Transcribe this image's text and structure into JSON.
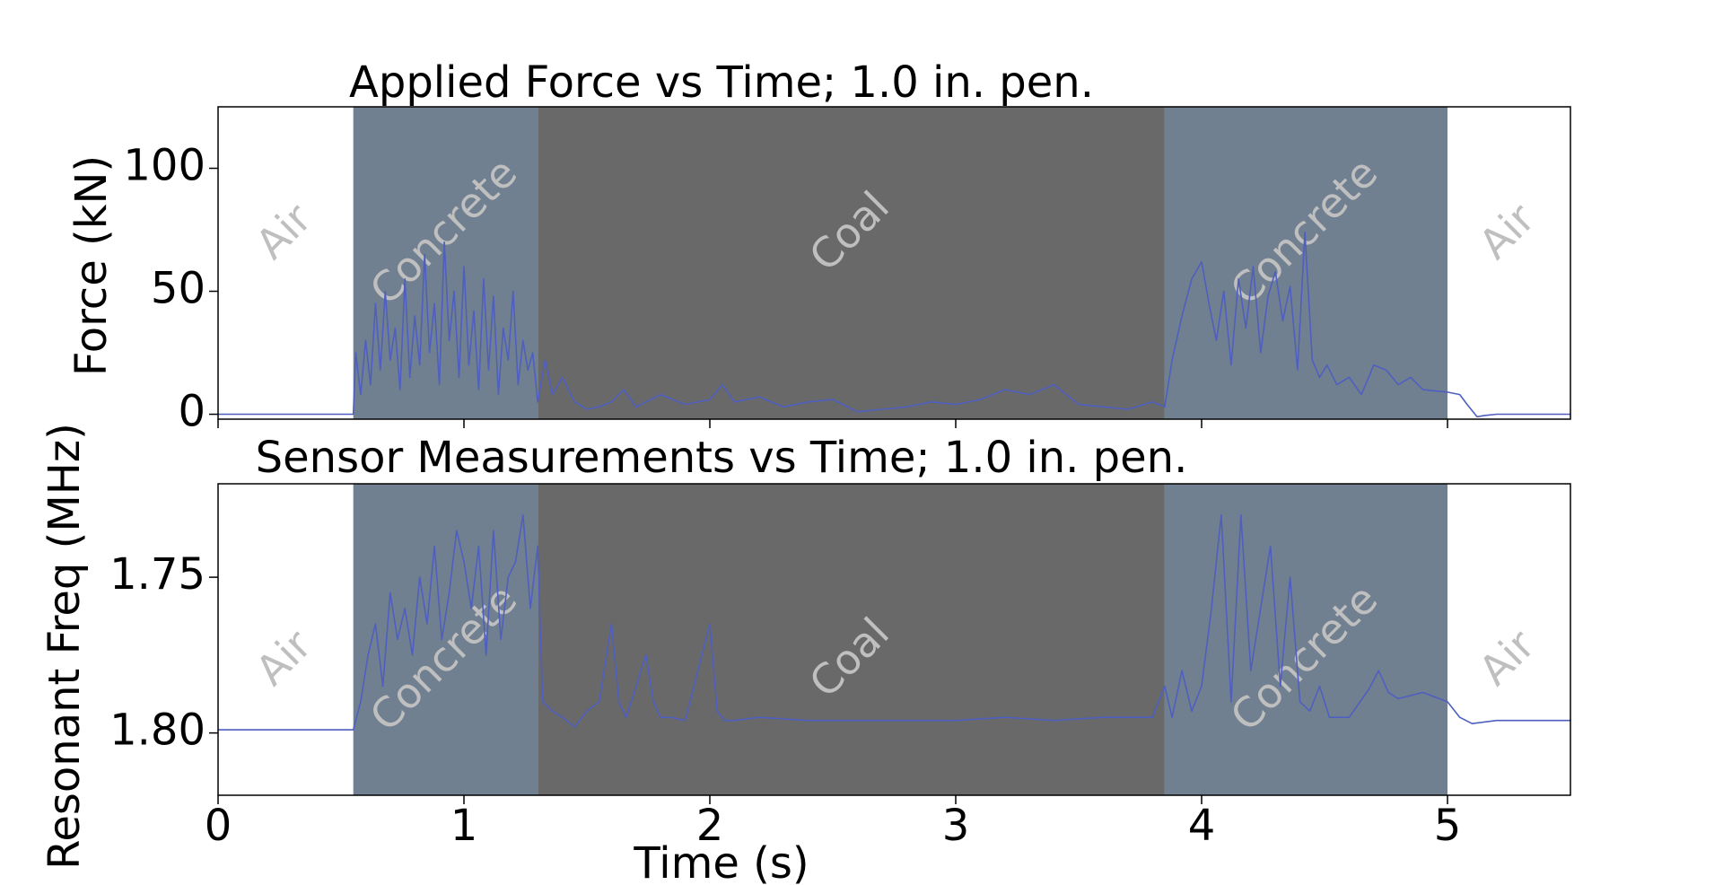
{
  "chart_data": [
    {
      "type": "line",
      "title": "Applied Force vs Time; 1.0 in. pen.",
      "xlabel": "",
      "ylabel": "Force (kN)",
      "xlim": [
        0,
        5.5
      ],
      "ylim": [
        -2,
        125
      ],
      "yticks": [
        0,
        50,
        100
      ],
      "xticks": [
        0,
        1,
        2,
        3,
        4,
        5
      ],
      "show_xtick_labels": false,
      "line_color": "#4f5fbf",
      "regions": [
        {
          "label": "Air",
          "x0": 0.0,
          "x1": 0.55,
          "color": "#ffffff"
        },
        {
          "label": "Concrete",
          "x0": 0.55,
          "x1": 1.3,
          "color": "#708090"
        },
        {
          "label": "Coal",
          "x0": 1.3,
          "x1": 3.85,
          "color": "#696969"
        },
        {
          "label": "Concrete",
          "x0": 3.85,
          "x1": 5.0,
          "color": "#708090"
        },
        {
          "label": "Air",
          "x0": 5.0,
          "x1": 5.5,
          "color": "#ffffff"
        }
      ],
      "series": [
        {
          "x": [
            0,
            0.55,
            0.56,
            0.58,
            0.6,
            0.62,
            0.64,
            0.66,
            0.68,
            0.7,
            0.72,
            0.74,
            0.76,
            0.78,
            0.8,
            0.82,
            0.84,
            0.86,
            0.88,
            0.9,
            0.92,
            0.94,
            0.96,
            0.98,
            1.0,
            1.02,
            1.04,
            1.06,
            1.08,
            1.1,
            1.12,
            1.14,
            1.16,
            1.18,
            1.2,
            1.22,
            1.24,
            1.26,
            1.28,
            1.3,
            1.33,
            1.36,
            1.4,
            1.45,
            1.5,
            1.55,
            1.6,
            1.65,
            1.7,
            1.8,
            1.9,
            2.0,
            2.05,
            2.1,
            2.2,
            2.3,
            2.4,
            2.5,
            2.6,
            2.7,
            2.8,
            2.9,
            3.0,
            3.1,
            3.2,
            3.3,
            3.4,
            3.5,
            3.6,
            3.7,
            3.8,
            3.85,
            3.88,
            3.92,
            3.96,
            4.0,
            4.03,
            4.06,
            4.09,
            4.12,
            4.15,
            4.18,
            4.21,
            4.24,
            4.27,
            4.3,
            4.33,
            4.36,
            4.39,
            4.42,
            4.45,
            4.48,
            4.51,
            4.55,
            4.6,
            4.65,
            4.7,
            4.75,
            4.8,
            4.85,
            4.9,
            5.0,
            5.05,
            5.08,
            5.12,
            5.15,
            5.2,
            5.3,
            5.5
          ],
          "y": [
            0,
            0,
            25,
            8,
            30,
            12,
            45,
            18,
            50,
            22,
            35,
            10,
            55,
            15,
            40,
            20,
            65,
            25,
            45,
            12,
            70,
            30,
            50,
            15,
            60,
            20,
            42,
            10,
            55,
            18,
            48,
            8,
            35,
            22,
            50,
            12,
            30,
            18,
            25,
            5,
            22,
            8,
            15,
            5,
            2,
            3,
            5,
            10,
            3,
            8,
            4,
            6,
            12,
            5,
            7,
            3,
            5,
            6,
            1,
            2,
            3,
            5,
            4,
            6,
            10,
            8,
            12,
            4,
            3,
            2,
            5,
            3,
            22,
            40,
            55,
            62,
            45,
            30,
            50,
            20,
            55,
            35,
            60,
            25,
            48,
            58,
            38,
            52,
            18,
            74,
            22,
            15,
            20,
            12,
            15,
            8,
            20,
            18,
            12,
            15,
            10,
            9,
            8,
            4,
            -1,
            -0.5,
            0,
            0,
            0
          ]
        }
      ]
    },
    {
      "type": "line",
      "title": "Sensor Measurements vs Time; 1.0 in. pen.",
      "xlabel": "Time (s)",
      "ylabel": "Resonant Freq (MHz)",
      "xlim": [
        0,
        5.5
      ],
      "ylim": [
        1.82,
        1.72
      ],
      "yticks": [
        1.75,
        1.8
      ],
      "xticks": [
        0,
        1,
        2,
        3,
        4,
        5
      ],
      "y_inverted": true,
      "line_color": "#4f5fbf",
      "regions": [
        {
          "label": "Air",
          "x0": 0.0,
          "x1": 0.55,
          "color": "#ffffff"
        },
        {
          "label": "Concrete",
          "x0": 0.55,
          "x1": 1.3,
          "color": "#708090"
        },
        {
          "label": "Coal",
          "x0": 1.3,
          "x1": 3.85,
          "color": "#696969"
        },
        {
          "label": "Concrete",
          "x0": 3.85,
          "x1": 5.0,
          "color": "#708090"
        },
        {
          "label": "Air",
          "x0": 5.0,
          "x1": 5.5,
          "color": "#ffffff"
        }
      ],
      "series": [
        {
          "x": [
            0,
            0.55,
            0.58,
            0.61,
            0.64,
            0.67,
            0.7,
            0.73,
            0.76,
            0.79,
            0.82,
            0.85,
            0.88,
            0.91,
            0.94,
            0.97,
            1.0,
            1.03,
            1.06,
            1.09,
            1.12,
            1.15,
            1.18,
            1.21,
            1.24,
            1.27,
            1.3,
            1.32,
            1.36,
            1.4,
            1.45,
            1.5,
            1.55,
            1.6,
            1.63,
            1.66,
            1.7,
            1.74,
            1.77,
            1.8,
            1.84,
            1.9,
            2.0,
            2.03,
            2.06,
            2.1,
            2.2,
            2.4,
            2.6,
            2.8,
            3.0,
            3.2,
            3.4,
            3.6,
            3.8,
            3.85,
            3.88,
            3.92,
            3.96,
            4.0,
            4.04,
            4.08,
            4.12,
            4.16,
            4.2,
            4.24,
            4.28,
            4.32,
            4.36,
            4.4,
            4.44,
            4.48,
            4.52,
            4.6,
            4.68,
            4.72,
            4.76,
            4.8,
            4.9,
            5.0,
            5.05,
            5.1,
            5.2,
            5.3,
            5.5
          ],
          "y": [
            1.799,
            1.799,
            1.79,
            1.775,
            1.765,
            1.785,
            1.755,
            1.77,
            1.76,
            1.775,
            1.75,
            1.765,
            1.74,
            1.77,
            1.755,
            1.735,
            1.745,
            1.76,
            1.74,
            1.775,
            1.735,
            1.77,
            1.75,
            1.745,
            1.73,
            1.76,
            1.74,
            1.79,
            1.793,
            1.795,
            1.798,
            1.793,
            1.79,
            1.765,
            1.79,
            1.795,
            1.785,
            1.775,
            1.79,
            1.795,
            1.795,
            1.796,
            1.765,
            1.793,
            1.796,
            1.796,
            1.795,
            1.796,
            1.796,
            1.796,
            1.796,
            1.795,
            1.796,
            1.795,
            1.795,
            1.785,
            1.795,
            1.78,
            1.793,
            1.785,
            1.76,
            1.73,
            1.79,
            1.73,
            1.78,
            1.76,
            1.74,
            1.785,
            1.75,
            1.79,
            1.793,
            1.785,
            1.795,
            1.795,
            1.786,
            1.78,
            1.787,
            1.789,
            1.787,
            1.79,
            1.795,
            1.797,
            1.796,
            1.796,
            1.796
          ]
        }
      ]
    }
  ]
}
